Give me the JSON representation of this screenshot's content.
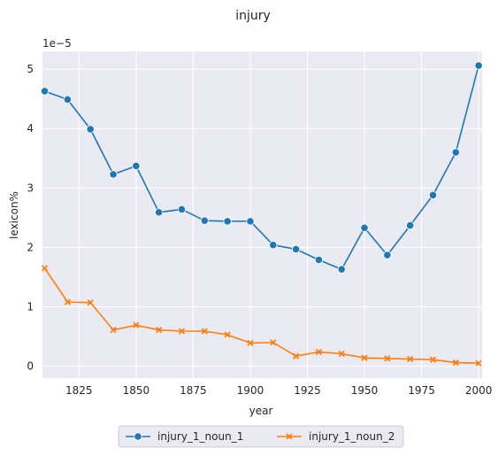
{
  "chart_data": {
    "type": "line",
    "title": "injury",
    "xlabel": "year",
    "ylabel": "lexicon%",
    "y_offset_label": "1e−5",
    "xlim": [
      1809,
      2001.5
    ],
    "ylim": [
      -0.2,
      5.3
    ],
    "x_ticks": [
      1825,
      1850,
      1875,
      1900,
      1925,
      1950,
      1975,
      2000
    ],
    "y_ticks": [
      0,
      1,
      2,
      3,
      4,
      5
    ],
    "grid": true,
    "legend_position": "bottom-center",
    "x": [
      1810,
      1820,
      1830,
      1840,
      1850,
      1860,
      1870,
      1880,
      1890,
      1900,
      1910,
      1920,
      1930,
      1940,
      1950,
      1960,
      1970,
      1980,
      1990,
      2000
    ],
    "series": [
      {
        "name": "injury_1_noun_1",
        "color": "#1f77b4",
        "marker": "circle",
        "values": [
          4.63,
          4.49,
          3.99,
          3.23,
          3.37,
          2.59,
          2.64,
          2.45,
          2.44,
          2.44,
          2.04,
          1.97,
          1.79,
          1.63,
          2.33,
          1.87,
          2.37,
          2.88,
          3.6,
          5.06
        ]
      },
      {
        "name": "injury_1_noun_2",
        "color": "#ff7f0e",
        "marker": "x",
        "values": [
          1.65,
          1.08,
          1.07,
          0.61,
          0.69,
          0.61,
          0.59,
          0.59,
          0.53,
          0.39,
          0.4,
          0.17,
          0.24,
          0.21,
          0.14,
          0.13,
          0.12,
          0.11,
          0.06,
          0.05
        ]
      }
    ]
  }
}
